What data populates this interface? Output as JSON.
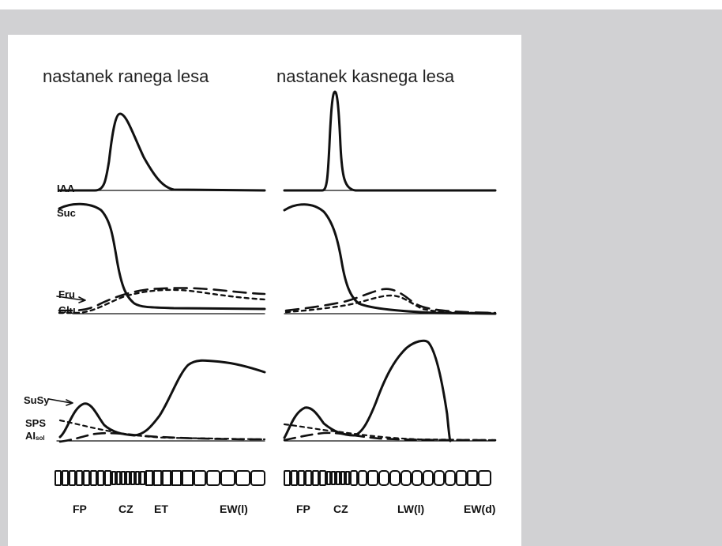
{
  "columns": [
    {
      "title": "nastanek ranega lesa"
    },
    {
      "title": "nastanek kasnega lesa"
    }
  ],
  "curve_labels": {
    "iaa": "IAA",
    "suc": "Suc",
    "fru": "Fru",
    "glu": "Glu",
    "susy": "SuSy",
    "sps": "SPS",
    "ai_main": "AI",
    "ai_sub": "sol"
  },
  "zones": {
    "left": [
      "FP",
      "CZ",
      "ET",
      "EW(l)"
    ],
    "right": [
      "FP",
      "CZ",
      "LW(l)",
      "EW(d)"
    ]
  },
  "colors": {
    "background": "#d1d1d3",
    "panel": "#ffffff",
    "ink": "#111111"
  }
}
